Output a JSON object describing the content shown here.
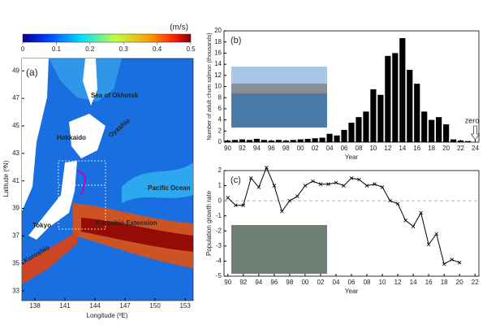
{
  "map": {
    "panel_label": "(a)",
    "unit": "(m/s)",
    "colorbar_lim": [
      0,
      0.5
    ],
    "colorbar_ticks": [
      0,
      0.1,
      0.2,
      0.3,
      0.4,
      0.5
    ],
    "xlabel": "Longitude (ºE)",
    "ylabel": "Latitude (ºN)",
    "xlim": [
      136.7,
      153.8
    ],
    "ylim": [
      32.3,
      49.9
    ],
    "xticks": [
      138,
      141,
      144,
      147,
      150,
      153
    ],
    "yticks": [
      33,
      35,
      37,
      39,
      41,
      43,
      45,
      47,
      49
    ],
    "labels": [
      "Sea of Okhotsk",
      "Hokkaido",
      "Oyashio",
      "Pacific Ocean",
      "Tokyo",
      "Kuroshio Extension",
      "Kuroshio"
    ]
  },
  "chart_data": [
    {
      "type": "bar",
      "panel_label": "(b)",
      "ylabel": "Number of adult chum salmon (thousands)",
      "xlabel": "Year",
      "annotation": "zero",
      "color": "#000000",
      "x": [
        1990,
        1991,
        1992,
        1993,
        1994,
        1995,
        1996,
        1997,
        1998,
        1999,
        2000,
        2001,
        2002,
        2003,
        2004,
        2005,
        2006,
        2007,
        2008,
        2009,
        2010,
        2011,
        2012,
        2013,
        2014,
        2015,
        2016,
        2017,
        2018,
        2019,
        2020,
        2021,
        2022,
        2023,
        2024
      ],
      "values": [
        0.3,
        0.4,
        0.5,
        0.4,
        0.6,
        0.4,
        0.3,
        0.4,
        0.3,
        0.4,
        0.5,
        0.6,
        0.7,
        0.8,
        1.5,
        1.2,
        2.2,
        3.5,
        4.5,
        5.5,
        9.5,
        8.5,
        15.5,
        16,
        18.7,
        13,
        10.5,
        5.5,
        4,
        4.5,
        3.2,
        0.5,
        0.3,
        0.2,
        0
      ],
      "xlim": [
        1989.5,
        2024.5
      ],
      "ylim": [
        0,
        20
      ],
      "xticks": [
        {
          "value": 1990,
          "label": "90"
        },
        {
          "value": 1992,
          "label": "92"
        },
        {
          "value": 1994,
          "label": "94"
        },
        {
          "value": 1996,
          "label": "96"
        },
        {
          "value": 1998,
          "label": "98"
        },
        {
          "value": 2000,
          "label": "00"
        },
        {
          "value": 2002,
          "label": "02"
        },
        {
          "value": 2004,
          "label": "04"
        },
        {
          "value": 2006,
          "label": "06"
        },
        {
          "value": 2008,
          "label": "08"
        },
        {
          "value": 2010,
          "label": "10"
        },
        {
          "value": 2012,
          "label": "12"
        },
        {
          "value": 2014,
          "label": "14"
        },
        {
          "value": 2016,
          "label": "16"
        },
        {
          "value": 2018,
          "label": "18"
        },
        {
          "value": 2020,
          "label": "20"
        },
        {
          "value": 2022,
          "label": "22"
        },
        {
          "value": 2024,
          "label": "24"
        }
      ],
      "yticks": [
        0,
        2,
        4,
        6,
        8,
        10,
        12,
        14,
        16,
        18,
        20
      ]
    },
    {
      "type": "line",
      "panel_label": "(c)",
      "ylabel": "Population growth rate",
      "xlabel": "Year",
      "color": "#000000",
      "x": [
        1990,
        1991,
        1992,
        1993,
        1994,
        1995,
        1996,
        1997,
        1998,
        1999,
        2000,
        2001,
        2002,
        2003,
        2004,
        2005,
        2006,
        2007,
        2008,
        2009,
        2010,
        2011,
        2012,
        2013,
        2014,
        2015,
        2016,
        2017,
        2018,
        2019,
        2020
      ],
      "values": [
        0.2,
        -0.3,
        -0.3,
        1.5,
        0.9,
        2.2,
        1.0,
        -0.7,
        0.0,
        0.3,
        1.0,
        1.3,
        1.1,
        1.1,
        1.2,
        1.0,
        1.5,
        1.4,
        1.0,
        1.1,
        0.9,
        0.0,
        -0.2,
        -1.3,
        -1.7,
        -0.8,
        -2.9,
        -2.2,
        -4.2,
        -3.9,
        -4.1
      ],
      "xlim": [
        1989.5,
        2022.5
      ],
      "ylim": [
        -5,
        2
      ],
      "xticks": [
        {
          "value": 1990,
          "label": "90"
        },
        {
          "value": 1992,
          "label": "92"
        },
        {
          "value": 1994,
          "label": "94"
        },
        {
          "value": 1996,
          "label": "96"
        },
        {
          "value": 1998,
          "label": "98"
        },
        {
          "value": 2000,
          "label": "00"
        },
        {
          "value": 2002,
          "label": "02"
        },
        {
          "value": 2004,
          "label": "04"
        },
        {
          "value": 2006,
          "label": "06"
        },
        {
          "value": 2008,
          "label": "08"
        },
        {
          "value": 2010,
          "label": "10"
        },
        {
          "value": 2012,
          "label": "12"
        },
        {
          "value": 2014,
          "label": "14"
        },
        {
          "value": 2016,
          "label": "16"
        },
        {
          "value": 2018,
          "label": "18"
        },
        {
          "value": 2020,
          "label": "20"
        },
        {
          "value": 2022,
          "label": "22"
        }
      ],
      "yticks": [
        -5,
        -4,
        -3,
        -2,
        -1,
        0,
        1,
        2
      ]
    }
  ]
}
